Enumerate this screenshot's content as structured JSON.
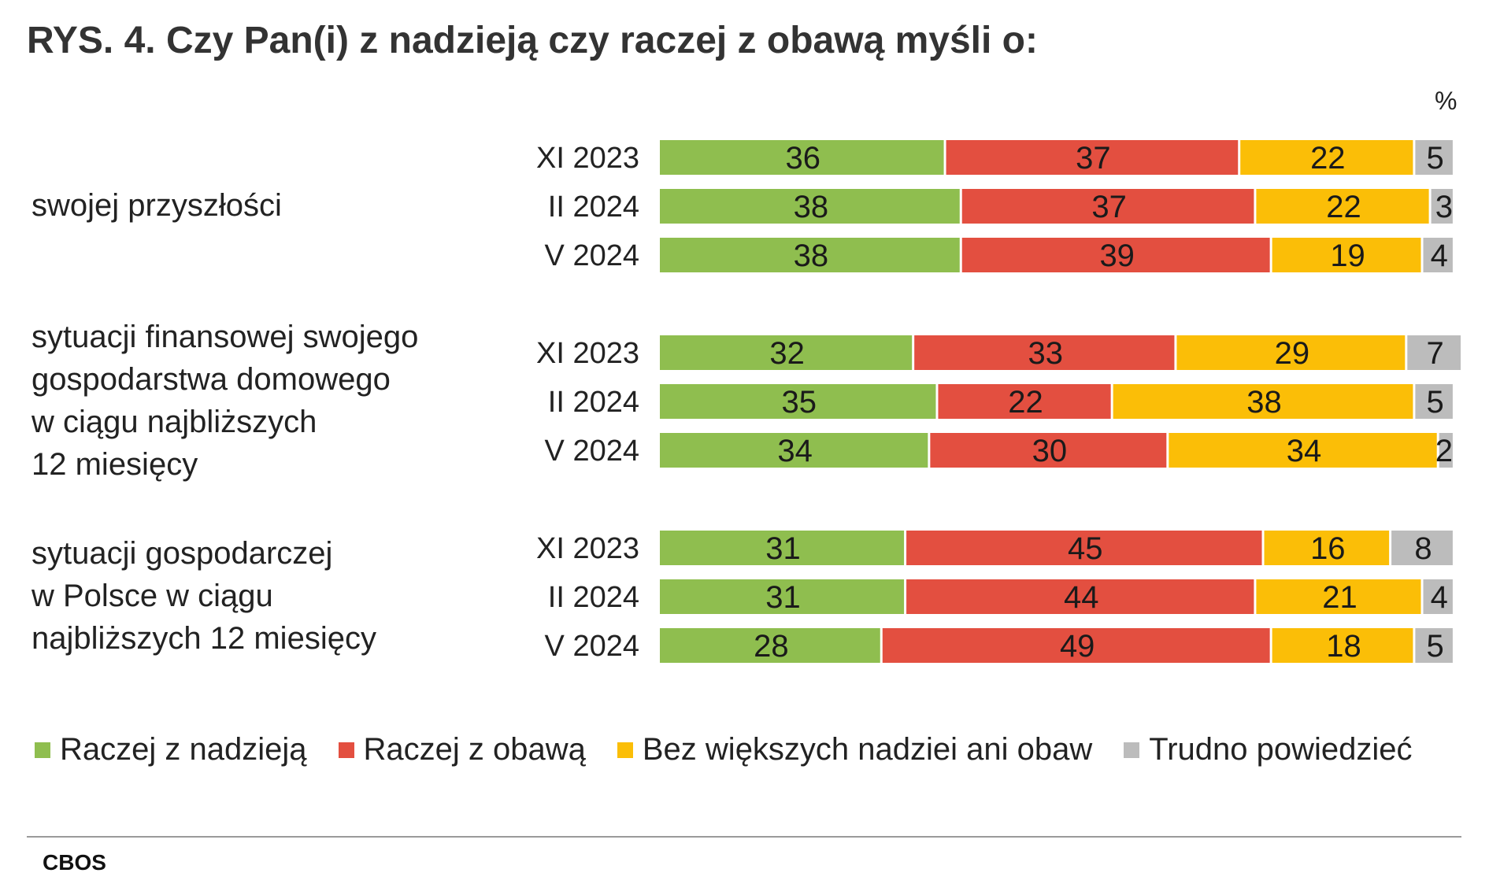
{
  "title": "RYS. 4. Czy Pan(i) z nadzieją czy raczej z obawą myśli o:",
  "unit": "%",
  "source": "CBOS",
  "colors": {
    "Raczej z nadzieją": "#8fbe4f",
    "Raczej z obawą": "#e34f40",
    "Bez większych nadziei ani obaw": "#fbbe07",
    "Trudno powiedzieć": "#bcbcbc"
  },
  "chart_data": {
    "type": "bar",
    "orientation": "horizontal",
    "stacked": true,
    "title": "RYS. 4. Czy Pan(i) z nadzieją czy raczej z obawą myśli o:",
    "unit": "%",
    "xlim": [
      0,
      100
    ],
    "legend_position": "bottom",
    "series_names": [
      "Raczej z nadzieją",
      "Raczej z obawą",
      "Bez większych nadziei ani obaw",
      "Trudno powiedzieć"
    ],
    "groups": [
      {
        "label": "swojej przyszłości",
        "label_lines": [
          "swojej przyszłości"
        ],
        "rows": [
          {
            "period": "XI 2023",
            "values": [
              36,
              37,
              22,
              5
            ]
          },
          {
            "period": "II 2024",
            "values": [
              38,
              37,
              22,
              3
            ]
          },
          {
            "period": "V 2024",
            "values": [
              38,
              39,
              19,
              4
            ]
          }
        ]
      },
      {
        "label": "sytuacji finansowej swojego gospodarstwa domowego w ciągu najbliższych 12 miesięcy",
        "label_lines": [
          "sytuacji finansowej swojego",
          "gospodarstwa domowego",
          "w ciągu najbliższych",
          "12 miesięcy"
        ],
        "rows": [
          {
            "period": "XI 2023",
            "values": [
              32,
              33,
              29,
              7
            ]
          },
          {
            "period": "II 2024",
            "values": [
              35,
              22,
              38,
              5
            ]
          },
          {
            "period": "V 2024",
            "values": [
              34,
              30,
              34,
              2
            ]
          }
        ]
      },
      {
        "label": "sytuacji gospodarczej w Polsce w ciągu najbliższych 12 miesięcy",
        "label_lines": [
          "sytuacji gospodarczej",
          "w Polsce w ciągu",
          "najbliższych 12 miesięcy"
        ],
        "rows": [
          {
            "period": "XI 2023",
            "values": [
              31,
              45,
              16,
              8
            ]
          },
          {
            "period": "II 2024",
            "values": [
              31,
              44,
              21,
              4
            ]
          },
          {
            "period": "V 2024",
            "values": [
              28,
              49,
              18,
              5
            ]
          }
        ]
      }
    ]
  }
}
